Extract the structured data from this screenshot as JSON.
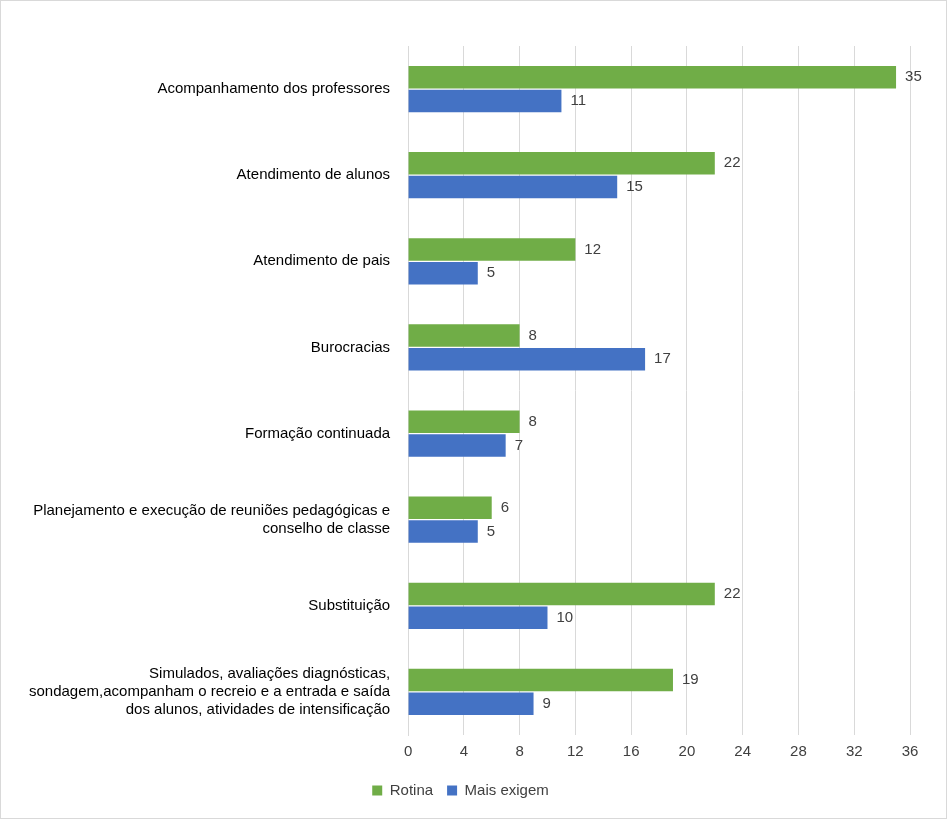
{
  "chart_data": {
    "type": "bar",
    "orientation": "horizontal",
    "categories": [
      "Acompanhamento dos professores",
      "Atendimento de alunos",
      "Atendimento de pais",
      "Burocracias",
      "Formação continuada",
      "Planejamento e execução de reuniões pedagógicas e conselho de classe",
      "Substituição",
      "Simulados, avaliações diagnósticas, sondagem,acompanham o recreio e a entrada e saída dos alunos, atividades de intensificação"
    ],
    "series": [
      {
        "name": "Rotina",
        "color": "#70ad47",
        "values": [
          35,
          22,
          12,
          8,
          8,
          6,
          22,
          19
        ]
      },
      {
        "name": "Mais exigem",
        "color": "#4472c4",
        "values": [
          11,
          15,
          5,
          17,
          7,
          5,
          10,
          9
        ]
      }
    ],
    "xlim": [
      0,
      36
    ],
    "xticks": [
      0,
      4,
      8,
      12,
      16,
      20,
      24,
      28,
      32,
      36
    ],
    "grid": true,
    "legend": "bottom",
    "data_labels": true
  }
}
